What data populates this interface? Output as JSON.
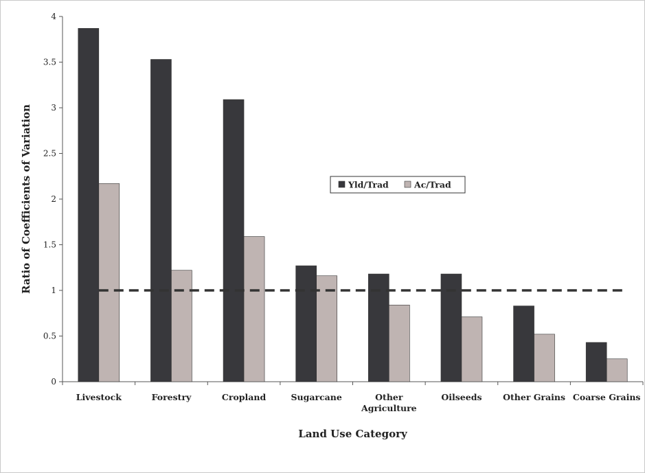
{
  "chart_data": {
    "type": "bar",
    "title": "",
    "xlabel": "Land Use Category",
    "ylabel": "Ratio of Coefficients of Variation",
    "ylim": [
      0,
      4
    ],
    "yticks": [
      "0",
      "0.5",
      "1",
      "1.5",
      "2",
      "2.5",
      "3",
      "3.5",
      "4"
    ],
    "categories": [
      [
        "Livestock"
      ],
      [
        "Forestry"
      ],
      [
        "Cropland"
      ],
      [
        "Sugarcane"
      ],
      [
        "Other",
        "Agriculture"
      ],
      [
        "Oilseeds"
      ],
      [
        "Other Grains"
      ],
      [
        "Coarse Grains"
      ]
    ],
    "series": [
      {
        "name": "Yld/Trad",
        "color": "#38383c",
        "values": [
          3.87,
          3.53,
          3.09,
          1.27,
          1.18,
          1.18,
          0.83,
          0.43
        ]
      },
      {
        "name": "Ac/Trad",
        "color": "#bfb4b2",
        "values": [
          2.17,
          1.22,
          1.59,
          1.16,
          0.84,
          0.71,
          0.52,
          0.25
        ]
      }
    ],
    "reference_line": {
      "y": 1,
      "style": "dashed",
      "color": "#333333"
    },
    "grid": false,
    "legend_position": "center-right"
  }
}
